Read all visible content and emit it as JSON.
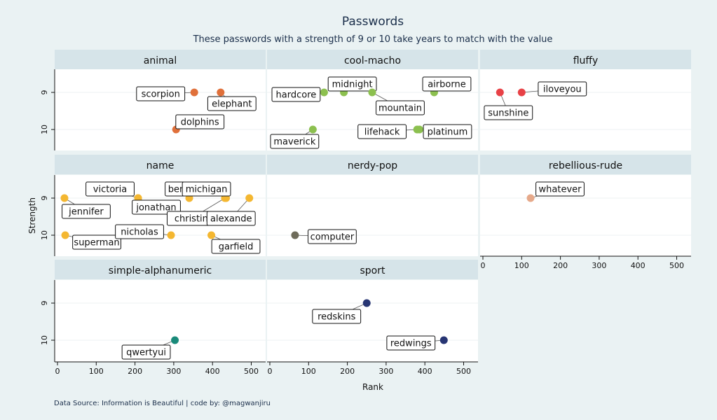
{
  "chart_data": {
    "type": "scatter",
    "title": "Passwords",
    "subtitle": "These passwords with a strength of 9 or 10 take years to match with the value",
    "caption": "Data Source: Information is Beautiful | code by: @magwanjiru",
    "xlabel": "Rank",
    "ylabel": "Strength",
    "xlim": [
      0,
      520
    ],
    "x_ticks": [
      0,
      100,
      200,
      300,
      400,
      500
    ],
    "y_ticks": [
      9,
      10
    ],
    "y_reversed": true,
    "grid": true,
    "legend": "none",
    "facets": [
      {
        "name": "animal",
        "color": "#e0703a",
        "points": [
          {
            "label": "scorpion",
            "rank": 353,
            "strength": 9
          },
          {
            "label": "elephant",
            "rank": 421,
            "strength": 9
          },
          {
            "label": "dolphins",
            "rank": 306,
            "strength": 10
          }
        ]
      },
      {
        "name": "cool-macho",
        "color": "#8cc04f",
        "points": [
          {
            "label": "hardcore",
            "rank": 140,
            "strength": 9
          },
          {
            "label": "midnight",
            "rank": 191,
            "strength": 9
          },
          {
            "label": "mountain",
            "rank": 264,
            "strength": 9
          },
          {
            "label": "airborne",
            "rank": 424,
            "strength": 9
          },
          {
            "label": "maverick",
            "rank": 111,
            "strength": 10
          },
          {
            "label": "lifehack",
            "rank": 380,
            "strength": 10
          },
          {
            "label": "platinum",
            "rank": 386,
            "strength": 10
          }
        ]
      },
      {
        "name": "fluffy",
        "color": "#e84146",
        "points": [
          {
            "label": "sunshine",
            "rank": 44,
            "strength": 9
          },
          {
            "label": "iloveyou",
            "rank": 100,
            "strength": 9
          }
        ]
      },
      {
        "name": "name",
        "color": "#f4b731",
        "points": [
          {
            "label": "jennifer",
            "rank": 18,
            "strength": 9
          },
          {
            "label": "victoria",
            "rank": 208,
            "strength": 9
          },
          {
            "label": "jonathan",
            "rank": 208,
            "strength": 9
          },
          {
            "label": "benjamin",
            "rank": 340,
            "strength": 9
          },
          {
            "label": "christin",
            "rank": 432,
            "strength": 9
          },
          {
            "label": "michigan",
            "rank": 435,
            "strength": 9
          },
          {
            "label": "alexande",
            "rank": 495,
            "strength": 9
          },
          {
            "label": "superman",
            "rank": 20,
            "strength": 10
          },
          {
            "label": "nicholas",
            "rank": 293,
            "strength": 10
          },
          {
            "label": "garfield",
            "rank": 397,
            "strength": 10
          }
        ]
      },
      {
        "name": "nerdy-pop",
        "color": "#6e6b5a",
        "points": [
          {
            "label": "computer",
            "rank": 65,
            "strength": 10
          }
        ]
      },
      {
        "name": "rebellious-rude",
        "color": "#e6a98a",
        "points": [
          {
            "label": "whatever",
            "rank": 123,
            "strength": 9
          }
        ]
      },
      {
        "name": "simple-alphanumeric",
        "color": "#1a8a7a",
        "points": [
          {
            "label": "qwertyui",
            "rank": 303,
            "strength": 10
          }
        ]
      },
      {
        "name": "sport",
        "color": "#273573",
        "points": [
          {
            "label": "redskins",
            "rank": 250,
            "strength": 9
          },
          {
            "label": "redwings",
            "rank": 449,
            "strength": 10
          }
        ]
      }
    ]
  }
}
